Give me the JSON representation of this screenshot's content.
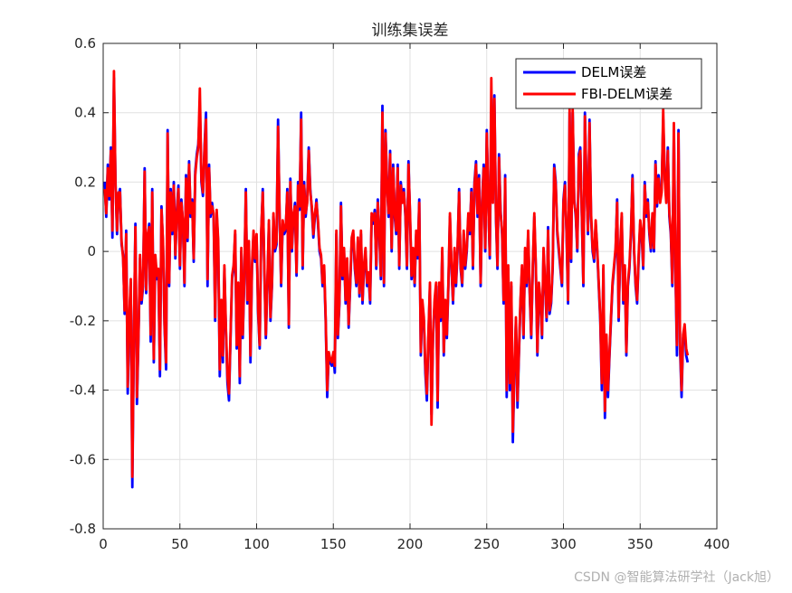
{
  "chart_data": {
    "type": "line",
    "title": "训练集误差",
    "xlim": [
      0,
      400
    ],
    "ylim": [
      -0.8,
      0.6
    ],
    "xticks": [
      0,
      50,
      100,
      150,
      200,
      250,
      300,
      350,
      400
    ],
    "yticks": [
      -0.8,
      -0.6,
      -0.4,
      -0.2,
      0,
      0.2,
      0.4,
      0.6
    ],
    "xtick_labels": [
      "0",
      "50",
      "100",
      "150",
      "200",
      "250",
      "300",
      "350",
      "400"
    ],
    "ytick_labels": [
      "-0.8",
      "-0.6",
      "-0.4",
      "-0.2",
      "0",
      "0.2",
      "0.4",
      "0.6"
    ],
    "grid": true,
    "legend_position": "top-right",
    "series": [
      {
        "name": "DELM误差",
        "color": "#0000ff",
        "values": [
          0.2,
          0.1,
          0.25,
          0.15,
          0.3,
          0.04,
          0.5,
          0.2,
          0.05,
          0.16,
          0.18,
          0.02,
          -0.01,
          -0.18,
          0.06,
          -0.41,
          -0.2,
          -0.09,
          -0.68,
          -0.25,
          0.08,
          -0.44,
          -0.25,
          -0.02,
          -0.15,
          -0.1,
          0.24,
          -0.12,
          0.04,
          0.08,
          -0.26,
          0.18,
          -0.32,
          -0.02,
          -0.08,
          -0.06,
          -0.36,
          0.13,
          0.02,
          -0.22,
          -0.34,
          0.35,
          -0.1,
          0.18,
          0.05,
          0.2,
          -0.02,
          0.12,
          0.19,
          -0.05,
          0.15,
          0.08,
          -0.1,
          0.22,
          0.03,
          0.26,
          0.1,
          0.15,
          -0.03,
          0.23,
          0.28,
          0.31,
          0.42,
          0.2,
          0.16,
          0.3,
          0.4,
          -0.1,
          0.25,
          0.1,
          0.14,
          0.1,
          -0.2,
          0.11,
          0.02,
          -0.36,
          -0.15,
          -0.32,
          -0.05,
          -0.23,
          -0.38,
          -0.43,
          -0.25,
          -0.08,
          -0.05,
          0.05,
          -0.28,
          -0.1,
          -0.38,
          0.0,
          -0.25,
          -0.08,
          0.18,
          -0.15,
          0.02,
          -0.32,
          -0.05,
          0.05,
          -0.03,
          0.04,
          -0.18,
          -0.28,
          0.05,
          0.18,
          -0.05,
          -0.25,
          -0.1,
          0.08,
          -0.2,
          -0.1,
          0.1,
          0.0,
          0.02,
          0.38,
          0.1,
          -0.1,
          0.08,
          0.05,
          0.06,
          0.18,
          -0.22,
          0.21,
          0.0,
          0.1,
          0.14,
          -0.07,
          0.2,
          0.12,
          0.4,
          -0.05,
          0.2,
          0.1,
          0.15,
          0.3,
          0.18,
          0.12,
          0.04,
          0.1,
          0.15,
          0.08,
          0.0,
          -0.02,
          -0.1,
          -0.05,
          -0.2,
          -0.42,
          -0.3,
          -0.32,
          -0.33,
          -0.3,
          -0.35,
          0.05,
          -0.25,
          -0.15,
          0.14,
          -0.08,
          0.0,
          -0.15,
          -0.03,
          -0.22,
          -0.1,
          0.03,
          0.05,
          -0.05,
          -0.1,
          0.03,
          -0.13,
          0.05,
          -0.15,
          -0.05,
          0.0,
          -0.1,
          -0.07,
          -0.15,
          0.1,
          0.08,
          0.12,
          -0.05,
          0.15,
          0.05,
          -0.08,
          0.42,
          -0.1,
          0.35,
          0.2,
          0.1,
          0.29,
          0.0,
          0.25,
          0.1,
          0.05,
          0.25,
          -0.05,
          0.2,
          0.15,
          0.18,
          0.1,
          -0.05,
          0.26,
          0.1,
          -0.08,
          0.0,
          -0.1,
          0.05,
          -0.02,
          0.15,
          -0.3,
          -0.15,
          -0.2,
          -0.35,
          -0.43,
          -0.25,
          -0.1,
          -0.47,
          -0.25,
          -0.15,
          -0.1,
          -0.45,
          -0.1,
          -0.2,
          0.0,
          -0.3,
          -0.15,
          -0.25,
          -0.1,
          0.1,
          -0.05,
          -0.15,
          0.0,
          -0.1,
          0.0,
          0.18,
          -0.05,
          -0.1,
          0.05,
          -0.05,
          0.0,
          0.1,
          0.05,
          0.18,
          -0.05,
          0.2,
          0.26,
          0.1,
          0.22,
          -0.1,
          0.15,
          0.25,
          0.0,
          0.35,
          0.15,
          -0.02,
          0.4,
          0.15,
          0.45,
          0.1,
          -0.05,
          0.28,
          0.12,
          0.05,
          -0.15,
          0.22,
          -0.42,
          -0.05,
          -0.4,
          -0.1,
          -0.55,
          -0.35,
          -0.2,
          -0.45,
          -0.3,
          -0.15,
          -0.05,
          -0.25,
          0.0,
          -0.1,
          0.05,
          -0.12,
          -0.25,
          -0.05,
          0.1,
          -0.05,
          -0.3,
          -0.1,
          -0.15,
          -0.25,
          0.0,
          -0.1,
          -0.2,
          0.07,
          -0.18,
          -0.15,
          -0.05,
          0.25,
          0.2,
          0.05,
          0.0,
          -0.05,
          -0.1,
          0.15,
          0.2,
          0.05,
          -0.15,
          0.4,
          -0.03,
          0.4,
          0.15,
          0.1,
          0.0,
          0.28,
          0.3,
          0.1,
          -0.1,
          0.4,
          0.2,
          0.05,
          0.38,
          0.1,
          0.0,
          -0.03,
          0.08,
          0.0,
          -0.1,
          -0.2,
          -0.4,
          -0.05,
          -0.48,
          -0.25,
          -0.42,
          -0.3,
          -0.2,
          -0.1,
          -0.05,
          0.0,
          0.15,
          -0.2,
          0.0,
          0.1,
          -0.15,
          -0.05,
          -0.3,
          -0.1,
          -0.05,
          0.05,
          0.22,
          0.0,
          -0.1,
          -0.15,
          -0.02,
          0.08,
          0.05,
          -0.05,
          0.2,
          0.1,
          0.15,
          0.05,
          0.0,
          0.1,
          0.0,
          0.26,
          0.13,
          0.22,
          0.15,
          0.18,
          0.38,
          0.22,
          0.15,
          0.3,
          0.1,
          0.05,
          -0.1,
          0.35,
          -0.05,
          -0.3,
          0.35,
          -0.28,
          -0.42,
          -0.25,
          -0.22,
          -0.3,
          -0.32
        ]
      },
      {
        "name": "FBI-DELM误差",
        "color": "#ff0000",
        "values": [
          0.18,
          0.11,
          0.24,
          0.16,
          0.29,
          0.06,
          0.52,
          0.19,
          0.06,
          0.17,
          0.17,
          0.03,
          -0.02,
          -0.17,
          0.05,
          -0.39,
          -0.19,
          -0.08,
          -0.65,
          -0.24,
          0.07,
          -0.42,
          -0.24,
          -0.01,
          -0.14,
          -0.09,
          0.23,
          -0.11,
          0.05,
          0.07,
          -0.24,
          0.17,
          -0.31,
          -0.01,
          -0.07,
          -0.05,
          -0.34,
          0.12,
          0.03,
          -0.21,
          -0.32,
          0.34,
          -0.09,
          0.17,
          0.06,
          0.19,
          -0.01,
          0.11,
          0.18,
          -0.04,
          0.14,
          0.09,
          -0.09,
          0.21,
          0.04,
          0.25,
          0.11,
          0.14,
          -0.02,
          0.22,
          0.27,
          0.3,
          0.47,
          0.21,
          0.17,
          0.29,
          0.38,
          -0.08,
          0.24,
          0.11,
          0.13,
          0.11,
          -0.19,
          0.12,
          0.03,
          -0.34,
          -0.14,
          -0.3,
          -0.04,
          -0.22,
          -0.36,
          -0.41,
          -0.24,
          -0.07,
          -0.04,
          0.06,
          -0.27,
          -0.09,
          -0.36,
          0.01,
          -0.24,
          -0.07,
          0.17,
          -0.14,
          0.03,
          -0.3,
          -0.04,
          0.06,
          -0.02,
          0.05,
          -0.17,
          -0.27,
          0.06,
          0.17,
          -0.04,
          -0.24,
          -0.09,
          0.09,
          -0.19,
          -0.09,
          0.11,
          0.01,
          0.03,
          0.36,
          0.11,
          -0.09,
          0.09,
          0.06,
          0.07,
          0.17,
          -0.21,
          0.2,
          0.01,
          0.11,
          0.13,
          -0.06,
          0.19,
          0.13,
          0.38,
          -0.04,
          0.19,
          0.11,
          0.14,
          0.29,
          0.17,
          0.13,
          0.05,
          0.11,
          0.14,
          0.09,
          0.01,
          -0.01,
          -0.09,
          -0.04,
          -0.19,
          -0.4,
          -0.29,
          -0.31,
          -0.32,
          -0.29,
          -0.33,
          0.06,
          -0.24,
          -0.14,
          0.13,
          -0.07,
          0.01,
          -0.14,
          -0.02,
          -0.21,
          -0.09,
          0.04,
          0.06,
          -0.04,
          -0.09,
          0.04,
          -0.12,
          0.06,
          -0.14,
          -0.04,
          0.01,
          -0.09,
          -0.06,
          -0.14,
          0.11,
          0.09,
          0.11,
          -0.04,
          0.14,
          0.06,
          -0.07,
          0.4,
          -0.09,
          0.34,
          0.19,
          0.11,
          0.28,
          0.01,
          0.24,
          0.11,
          0.06,
          0.24,
          -0.04,
          0.19,
          0.14,
          0.17,
          0.11,
          -0.04,
          0.25,
          0.11,
          -0.07,
          0.01,
          -0.09,
          0.06,
          -0.01,
          0.14,
          -0.29,
          -0.14,
          -0.19,
          -0.33,
          -0.41,
          -0.24,
          -0.09,
          -0.5,
          -0.24,
          -0.14,
          -0.09,
          -0.43,
          -0.09,
          -0.19,
          0.01,
          -0.29,
          -0.14,
          -0.24,
          -0.09,
          0.11,
          -0.04,
          -0.14,
          0.01,
          -0.09,
          0.01,
          0.17,
          -0.04,
          -0.09,
          0.06,
          -0.04,
          0.01,
          0.11,
          0.06,
          0.17,
          -0.04,
          0.19,
          0.25,
          0.11,
          0.21,
          -0.09,
          0.14,
          0.24,
          0.01,
          0.34,
          0.14,
          -0.01,
          0.5,
          0.14,
          0.44,
          0.11,
          -0.04,
          0.27,
          0.11,
          0.06,
          -0.14,
          0.21,
          -0.4,
          -0.04,
          -0.38,
          -0.09,
          -0.52,
          -0.34,
          -0.19,
          -0.43,
          -0.29,
          -0.14,
          -0.04,
          -0.24,
          0.01,
          -0.09,
          0.06,
          -0.11,
          -0.24,
          -0.04,
          0.11,
          -0.04,
          -0.29,
          -0.09,
          -0.14,
          -0.24,
          0.01,
          -0.09,
          -0.19,
          0.06,
          -0.17,
          -0.14,
          -0.04,
          0.24,
          0.19,
          0.06,
          0.01,
          -0.04,
          -0.09,
          0.14,
          0.19,
          0.06,
          -0.14,
          0.41,
          -0.02,
          0.41,
          0.14,
          0.11,
          0.01,
          0.27,
          0.29,
          0.11,
          -0.09,
          0.39,
          0.19,
          0.06,
          0.37,
          0.11,
          0.01,
          -0.02,
          0.09,
          0.01,
          -0.09,
          -0.19,
          -0.38,
          -0.04,
          -0.46,
          -0.24,
          -0.4,
          -0.29,
          -0.19,
          -0.09,
          -0.04,
          0.01,
          0.14,
          -0.19,
          0.01,
          0.11,
          -0.14,
          -0.04,
          -0.29,
          -0.09,
          -0.04,
          0.06,
          0.21,
          0.01,
          -0.09,
          -0.14,
          -0.01,
          0.09,
          0.06,
          -0.04,
          0.19,
          0.11,
          0.14,
          0.06,
          0.01,
          0.11,
          0.01,
          0.25,
          0.14,
          0.21,
          0.14,
          0.17,
          0.41,
          0.21,
          0.14,
          0.29,
          0.11,
          0.06,
          -0.09,
          0.37,
          -0.04,
          -0.27,
          0.34,
          -0.26,
          -0.4,
          -0.24,
          -0.21,
          -0.28,
          -0.3
        ]
      }
    ]
  },
  "watermark": "CSDN @智能算法研学社（Jack旭）"
}
